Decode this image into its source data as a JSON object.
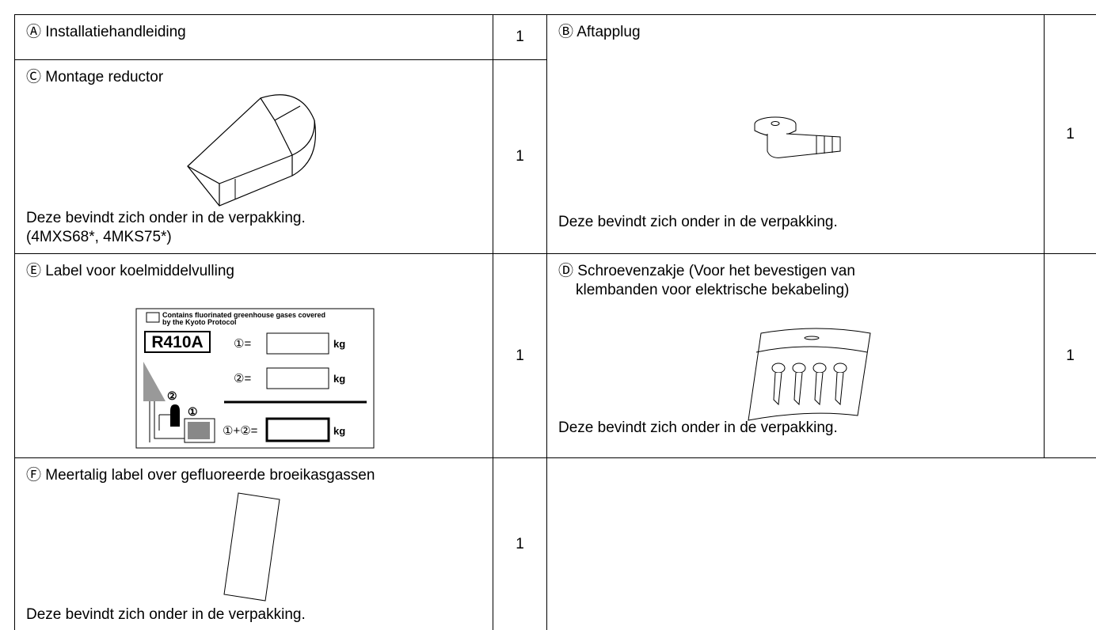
{
  "items": [
    {
      "label": "Ⓐ Installatiehandleiding",
      "quantity": 1
    },
    {
      "label": "Ⓑ Aftapplug",
      "note": "Deze bevindt zich onder in de verpakking.",
      "quantity": 1
    },
    {
      "label": "Ⓒ Montage reductor",
      "note": "Deze bevindt zich onder in de verpakking.",
      "models": "(4MXS68*, 4MKS75*)",
      "quantity": 1
    },
    {
      "label": "Ⓓ Schroevenzakje (Voor het bevestigen van klembanden voor elektrische bekabeling)",
      "note": "Deze bevindt zich onder in de verpakking.",
      "quantity": 1
    },
    {
      "label": "Ⓔ Label voor koelmiddelvulling",
      "quantity": 1,
      "illustration": {
        "heading_line_1": "Contains fluorinated greenhouse gases covered",
        "heading_line_2": "by the Kyoto Protocol",
        "refrigerant": "R410A",
        "unit": "kg",
        "charge_1": "①=",
        "charge_2": "②=",
        "total": "①+②=",
        "marker_1": "①",
        "marker_2": "②"
      }
    },
    {
      "label": "Ⓕ Meertalig label over gefluoreerde broeikasgassen",
      "note": "Deze bevindt zich onder in de verpakking.",
      "quantity": 1
    }
  ]
}
